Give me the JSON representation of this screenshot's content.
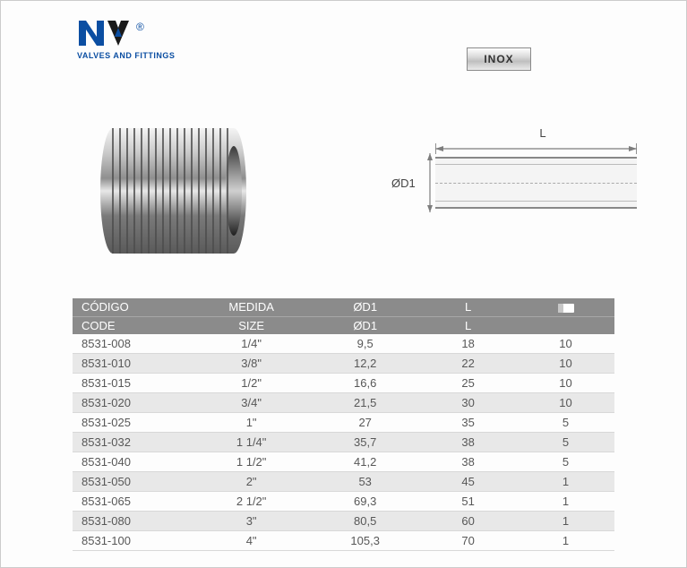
{
  "brand": {
    "tagline": "VALVES AND FITTINGS",
    "reg_mark": "®",
    "logo_colors": {
      "primary": "#0b4ea2",
      "secondary": "#1a1a1a"
    }
  },
  "badge": {
    "label": "INOX"
  },
  "drawing": {
    "label_L": "L",
    "label_D1": "ØD1",
    "stroke": "#7d7d7d",
    "fill": "#f4f4f4"
  },
  "table": {
    "type": "table",
    "header_bg": "#8b8b8b",
    "header_fg": "#ffffff",
    "stripe_bg": "#e8e8e8",
    "row_border": "#d8d8d8",
    "text_color": "#575757",
    "columns_row1": [
      "CÓDIGO",
      "MEDIDA",
      "ØD1",
      "L",
      ""
    ],
    "columns_row2": [
      "CODE",
      "SIZE",
      "ØD1",
      "L",
      ""
    ],
    "col_widths_pct": [
      22,
      22,
      20,
      18,
      18
    ],
    "col_align": [
      "left",
      "center",
      "center",
      "center",
      "center"
    ],
    "icon_col_name": "package-icon",
    "rows": [
      {
        "code": "8531-008",
        "size": "1/4\"",
        "d1": "9,5",
        "l": "18",
        "pack": "10"
      },
      {
        "code": "8531-010",
        "size": "3/8\"",
        "d1": "12,2",
        "l": "22",
        "pack": "10"
      },
      {
        "code": "8531-015",
        "size": "1/2\"",
        "d1": "16,6",
        "l": "25",
        "pack": "10"
      },
      {
        "code": "8531-020",
        "size": "3/4\"",
        "d1": "21,5",
        "l": "30",
        "pack": "10"
      },
      {
        "code": "8531-025",
        "size": "1\"",
        "d1": "27",
        "l": "35",
        "pack": "5"
      },
      {
        "code": "8531-032",
        "size": "1 1/4\"",
        "d1": "35,7",
        "l": "38",
        "pack": "5"
      },
      {
        "code": "8531-040",
        "size": "1 1/2\"",
        "d1": "41,2",
        "l": "38",
        "pack": "5"
      },
      {
        "code": "8531-050",
        "size": "2\"",
        "d1": "53",
        "l": "45",
        "pack": "1"
      },
      {
        "code": "8531-065",
        "size": "2 1/2\"",
        "d1": "69,3",
        "l": "51",
        "pack": "1"
      },
      {
        "code": "8531-080",
        "size": "3\"",
        "d1": "80,5",
        "l": "60",
        "pack": "1"
      },
      {
        "code": "8531-100",
        "size": "4\"",
        "d1": "105,3",
        "l": "70",
        "pack": "1"
      }
    ]
  }
}
